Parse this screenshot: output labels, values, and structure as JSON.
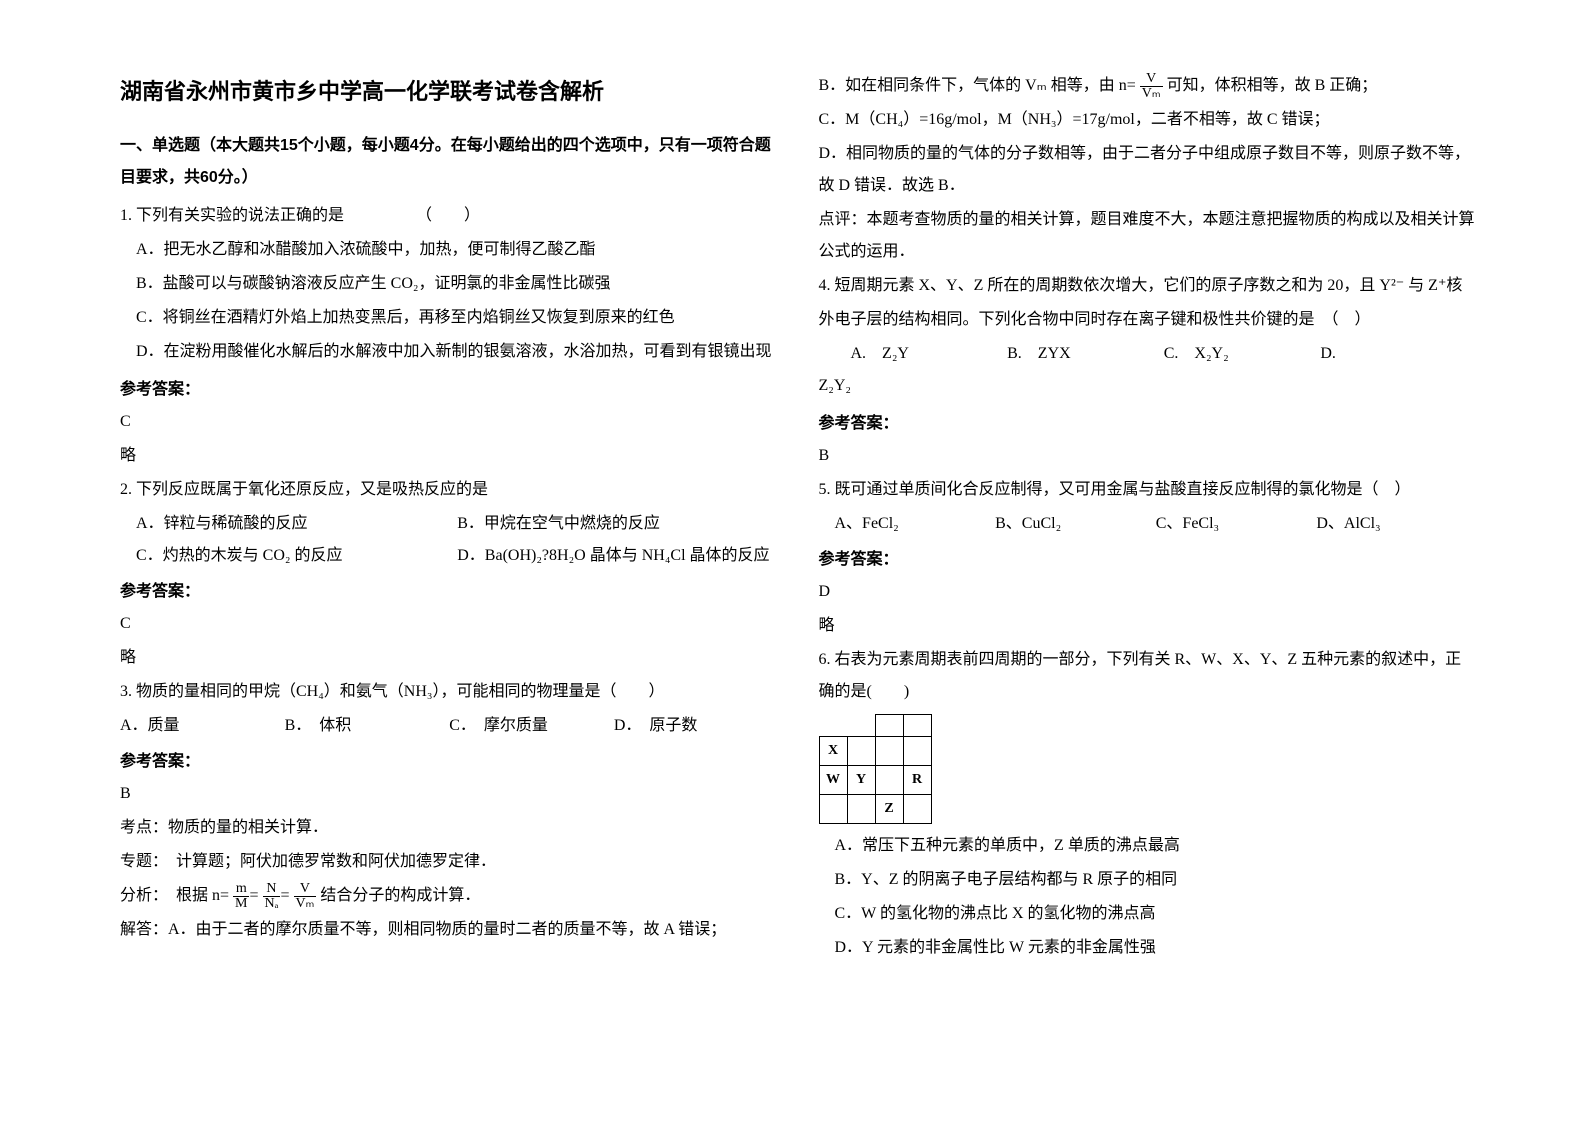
{
  "title": "湖南省永州市黄市乡中学高一化学联考试卷含解析",
  "section1_header": "一、单选题（本大题共15个小题，每小题4分。在每小题给出的四个选项中，只有一项符合题目要求，共60分。）",
  "q1": {
    "stem": "1. 下列有关实验的说法正确的是　　　　　（　　）",
    "A": "A．把无水乙醇和冰醋酸加入浓硫酸中，加热，便可制得乙酸乙酯",
    "B": "B．盐酸可以与碳酸钠溶液反应产生 CO₂，证明氯的非金属性比碳强",
    "C": "C．将铜丝在酒精灯外焰上加热变黑后，再移至内焰铜丝又恢复到原来的红色",
    "D": "D．在淀粉用酸催化水解后的水解液中加入新制的银氨溶液，水浴加热，可看到有银镜出现"
  },
  "answer_label": "参考答案：",
  "q1_ans": "C",
  "q1_note": "略",
  "q2": {
    "stem": "2. 下列反应既属于氧化还原反应，又是吸热反应的是",
    "A": "A．锌粒与稀硫酸的反应",
    "B": "B．甲烷在空气中燃烧的反应",
    "C": "C．灼热的木炭与 CO₂ 的反应",
    "D": "D．Ba(OH)₂?8H₂O 晶体与 NH₄Cl 晶体的反应"
  },
  "q2_ans": "C",
  "q2_note": "略",
  "q3": {
    "stem": "3. 物质的量相同的甲烷（CH₄）和氨气（NH₃），可能相同的物理量是（　　）",
    "A": "A．质量",
    "B": "B．　体积",
    "C": "C．　摩尔质量",
    "D": "D．　原子数"
  },
  "q3_ans": "B",
  "q3_kaodian": "考点：物质的量的相关计算．",
  "q3_zhuanti": "专题：　计算题；阿伏加德罗常数和阿伏加德罗定律．",
  "q3_fenxi_pre": "分析：　根据 n=",
  "q3_fenxi_post": "结合分子的构成计算．",
  "q3_jieda_A": "解答：A．由于二者的摩尔质量不等，则相同物质的量时二者的质量不等，故 A 错误；",
  "q3_jieda_B_pre": "B．如在相同条件下，气体的 Vₘ 相等，由 n=",
  "q3_jieda_B_post": "可知，体积相等，故 B 正确；",
  "q3_jieda_C": "C．M（CH₄）=16g/mol，M（NH₃）=17g/mol，二者不相等，故 C 错误；",
  "q3_jieda_D": "D．相同物质的量的气体的分子数相等，由于二者分子中组成原子数目不等，则原子数不等，故 D 错误．故选 B．",
  "q3_dianping": "点评：本题考查物质的量的相关计算，题目难度不大，本题注意把握物质的构成以及相关计算公式的运用．",
  "q4": {
    "stem_a": "4. 短周期元素 X、Y、Z 所在的周期数依次增大，它们的原子序数之和为 20，且 Y²⁻ 与 Z⁺核",
    "stem_b": "外电子层的结构相同。下列化合物中同时存在离子键和极性共价键的是　（　）",
    "A": "A.　Z₂Y",
    "B": "B.　ZYX",
    "C": "C.　X₂Y₂",
    "D": "D.",
    "D2": "Z₂Y₂"
  },
  "q4_ans": "B",
  "q5": {
    "stem": "5. 既可通过单质间化合反应制得，又可用金属与盐酸直接反应制得的氯化物是（　）",
    "A": "A、FeCl₂",
    "B": "B、CuCl₂",
    "C": "C、FeCl₃",
    "D": "D、AlCl₃"
  },
  "q5_ans": "D",
  "q5_note": "略",
  "q6": {
    "stem": "6. 右表为元素周期表前四周期的一部分，下列有关 R、W、X、Y、Z 五种元素的叙述中，正确的是(　　)",
    "A": "A．常压下五种元素的单质中，Z 单质的沸点最高",
    "B": "B．Y、Z 的阴离子电子层结构都与 R 原子的相同",
    "C": "C．W 的氢化物的沸点比 X 的氢化物的沸点高",
    "D": "D．Y 元素的非金属性比 W 元素的非金属性强"
  },
  "ptable": {
    "r1": [
      "",
      ""
    ],
    "r2": [
      "X",
      "",
      "",
      ""
    ],
    "r3": [
      "W",
      "Y",
      "",
      "R"
    ],
    "r4": [
      "",
      "",
      "Z",
      ""
    ]
  },
  "frac": {
    "m": "m",
    "M": "M",
    "N": "N",
    "NA": "Nₐ",
    "V": "V",
    "Vm": "Vₘ"
  },
  "colors": {
    "text": "#000000",
    "bg": "#ffffff"
  }
}
